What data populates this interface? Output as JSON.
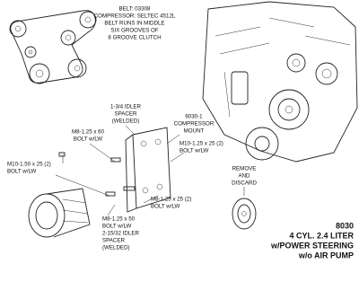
{
  "labels": [
    {
      "lines": [
        "BELT: 03308",
        "COMPRESSOR: SELTEC 4512L",
        "BELT RUNS IN MIDDLE",
        "SIX GROOVES OF",
        "8 GROOVE CLUTCH"
      ]
    },
    {
      "lines": [
        "1-3/4 IDLER",
        "SPACER",
        "(WELDED)"
      ]
    },
    {
      "lines": [
        "M8-1.25 x 60",
        "BOLT w/LW"
      ]
    },
    {
      "lines": [
        "6030-1",
        "COMPRESSOR",
        "MOUNT"
      ]
    },
    {
      "lines": [
        "M10-1.25 x 25 (2)",
        "BOLT w/LW"
      ]
    },
    {
      "lines": [
        "M10-1.50 x 25 (2)",
        "BOLT w/LW"
      ]
    },
    {
      "lines": [
        "M8-1.25 x 25 (2)",
        "BOLT w/LW"
      ]
    },
    {
      "lines": [
        "M8-1.25 x 50",
        "BOLT w/LW",
        "2-15/32 IDLER",
        "SPACER",
        "(WELDED)"
      ]
    },
    {
      "lines": [
        "REMOVE",
        "AND",
        "DISCARD"
      ]
    }
  ],
  "title_block": {
    "lines": [
      "8030",
      "4 CYL. 2.4 LITER",
      "w/POWER STEERING",
      "w/o AIR PUMP"
    ]
  }
}
